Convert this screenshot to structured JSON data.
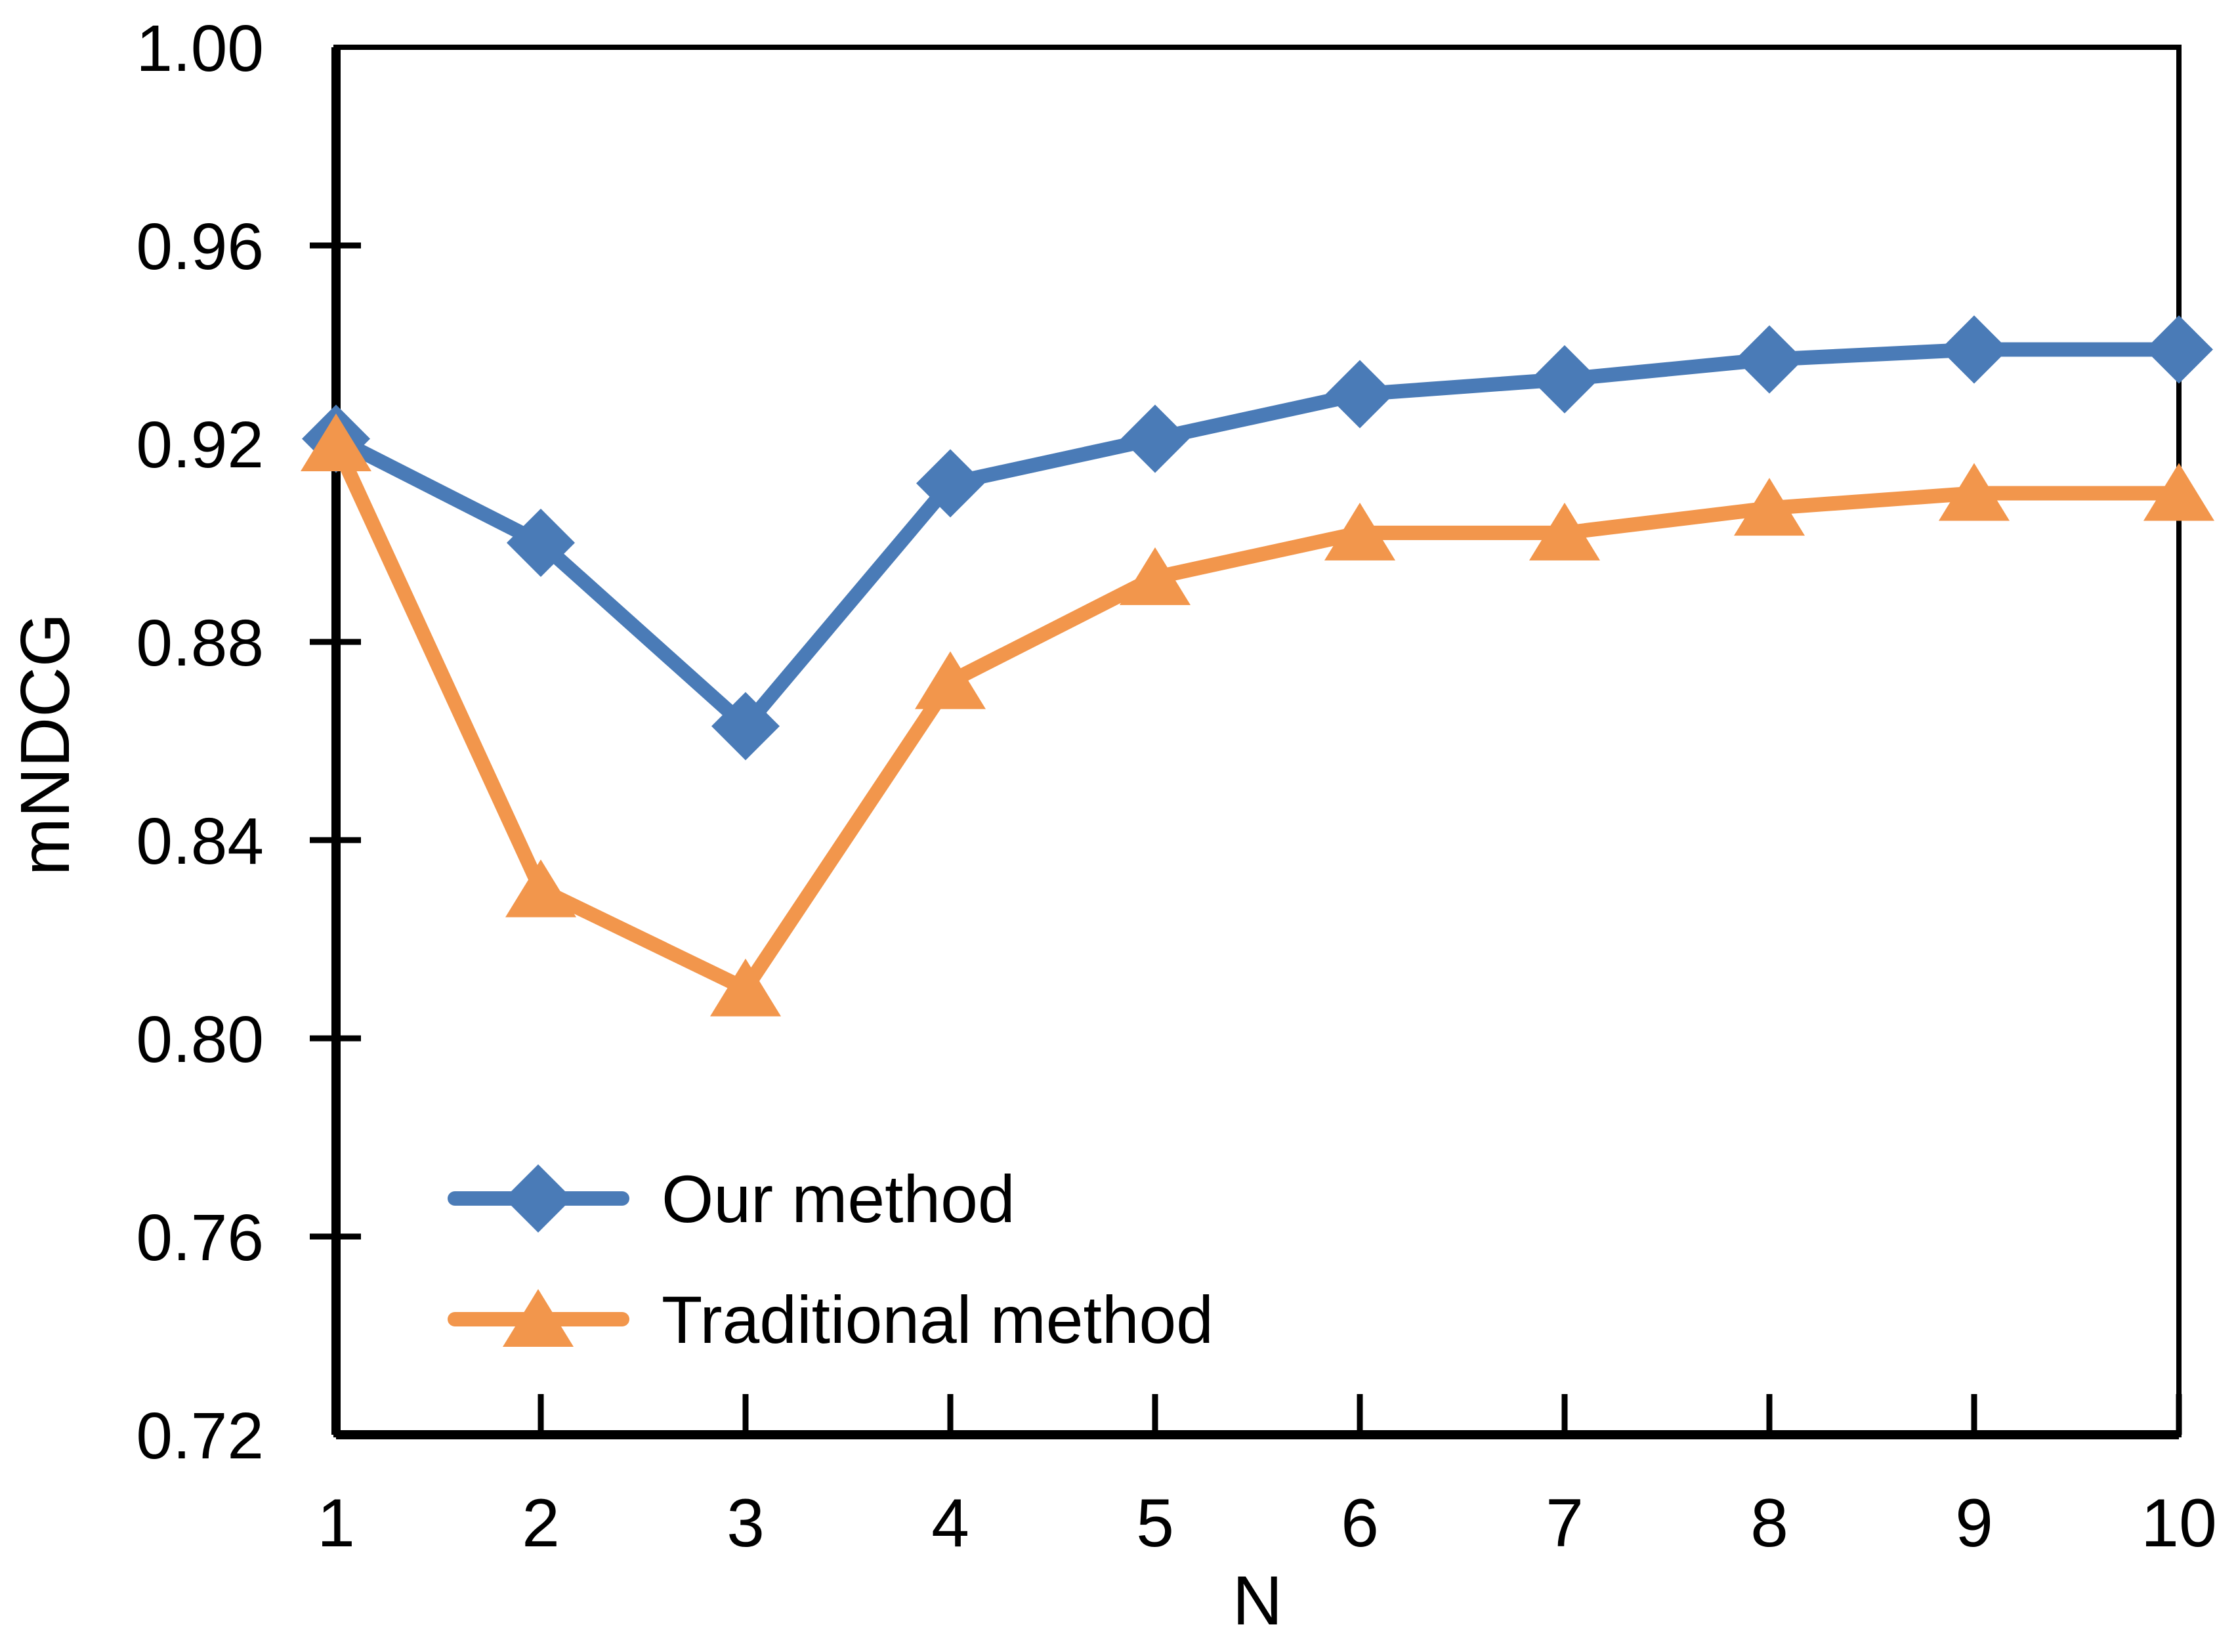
{
  "chart_data": {
    "type": "line",
    "title": "",
    "xlabel": "N",
    "ylabel": "mNDCG",
    "x": [
      1,
      2,
      3,
      4,
      5,
      6,
      7,
      8,
      9,
      10
    ],
    "series": [
      {
        "name": "Our method",
        "color": "#4A7BB7",
        "marker": "diamond",
        "values": [
          0.921,
          0.9,
          0.863,
          0.912,
          0.921,
          0.93,
          0.933,
          0.937,
          0.939,
          0.939
        ]
      },
      {
        "name": "Traditional method",
        "color": "#F2964C",
        "marker": "triangle",
        "values": [
          0.92,
          0.83,
          0.81,
          0.872,
          0.893,
          0.902,
          0.902,
          0.907,
          0.91,
          0.91
        ]
      }
    ],
    "ylim": [
      0.72,
      1.0
    ],
    "y_tick_values": [
      1.0,
      0.96,
      0.92,
      0.88,
      0.84,
      0.8,
      0.76,
      0.72
    ],
    "y_tick_labels": [
      "1.00",
      "0.96",
      "0.92",
      "0.88",
      "0.84",
      "0.80",
      "0.76",
      "0.72"
    ],
    "x_tick_labels": [
      "1",
      "2",
      "3",
      "4",
      "5",
      "6",
      "7",
      "8",
      "9",
      "10"
    ],
    "grid": false,
    "legend_position": "inside-bottom-left",
    "axis_color": "#000000",
    "text_color": "#000000",
    "background": "#FFFFFF"
  }
}
